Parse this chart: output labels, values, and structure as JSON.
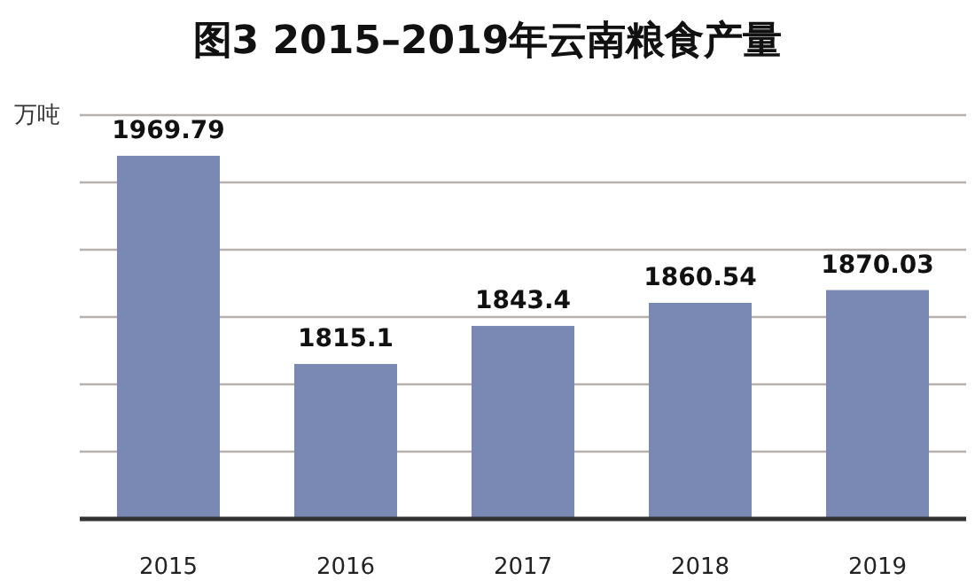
{
  "chart_data": {
    "type": "bar",
    "title": "图3  2015–2019年云南粮食产量",
    "ylabel": "万吨",
    "categories": [
      "2015",
      "2016",
      "2017",
      "2018",
      "2019"
    ],
    "values": [
      1969.79,
      1815.1,
      1843.4,
      1860.54,
      1870.03
    ],
    "color": "#7a89b4",
    "ylim": [
      1700,
      2000
    ],
    "yticks": [
      {
        "value": 1750,
        "label": null
      },
      {
        "value": 1800,
        "label": null
      },
      {
        "value": 1850,
        "label": null
      },
      {
        "value": 1900,
        "label": null
      },
      {
        "value": 1950,
        "label": null
      },
      {
        "value": 2000,
        "label": null
      }
    ],
    "tick_labels": "x",
    "grid": "y",
    "data_labels": true
  }
}
